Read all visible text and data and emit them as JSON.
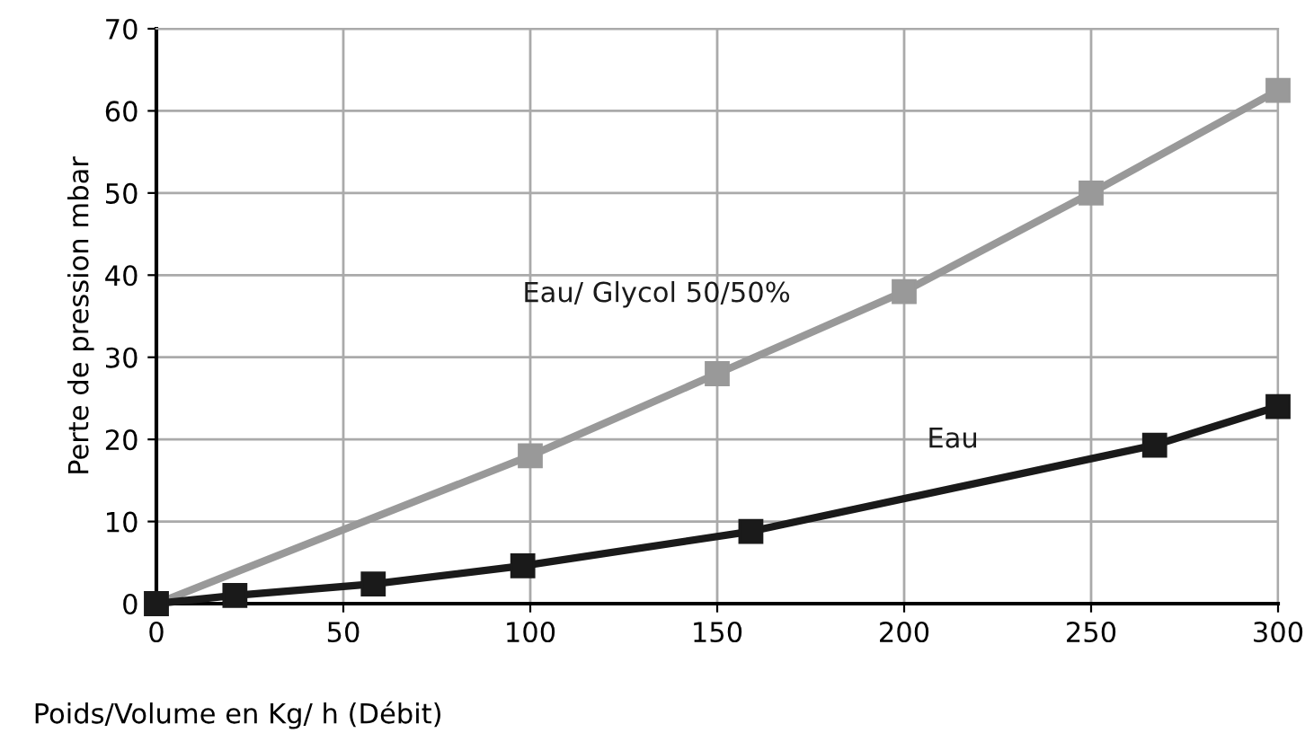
{
  "chart_data": {
    "type": "line",
    "xlabel": "Poids/Volume en Kg/ h (Débit)",
    "ylabel": "Perte de pression mbar",
    "xlim": [
      0,
      300
    ],
    "ylim": [
      0,
      70
    ],
    "xticks": [
      0,
      50,
      100,
      150,
      200,
      250,
      300
    ],
    "yticks": [
      0,
      10,
      20,
      30,
      40,
      50,
      60,
      70
    ],
    "grid": true,
    "legend": false,
    "marker": "square",
    "line_style": "solid",
    "series": [
      {
        "name": "Eau/ Glycol 50/50%",
        "color": "#999999",
        "x": [
          0,
          100,
          150,
          200,
          250,
          300
        ],
        "values": [
          0,
          18,
          28,
          38,
          50,
          62.5
        ]
      },
      {
        "name": "Eau",
        "color": "#1a1a1a",
        "x": [
          0,
          21,
          58,
          98,
          159,
          267,
          300
        ],
        "values": [
          0,
          1,
          2.4,
          4.6,
          8.8,
          19.3,
          24
        ]
      }
    ]
  }
}
